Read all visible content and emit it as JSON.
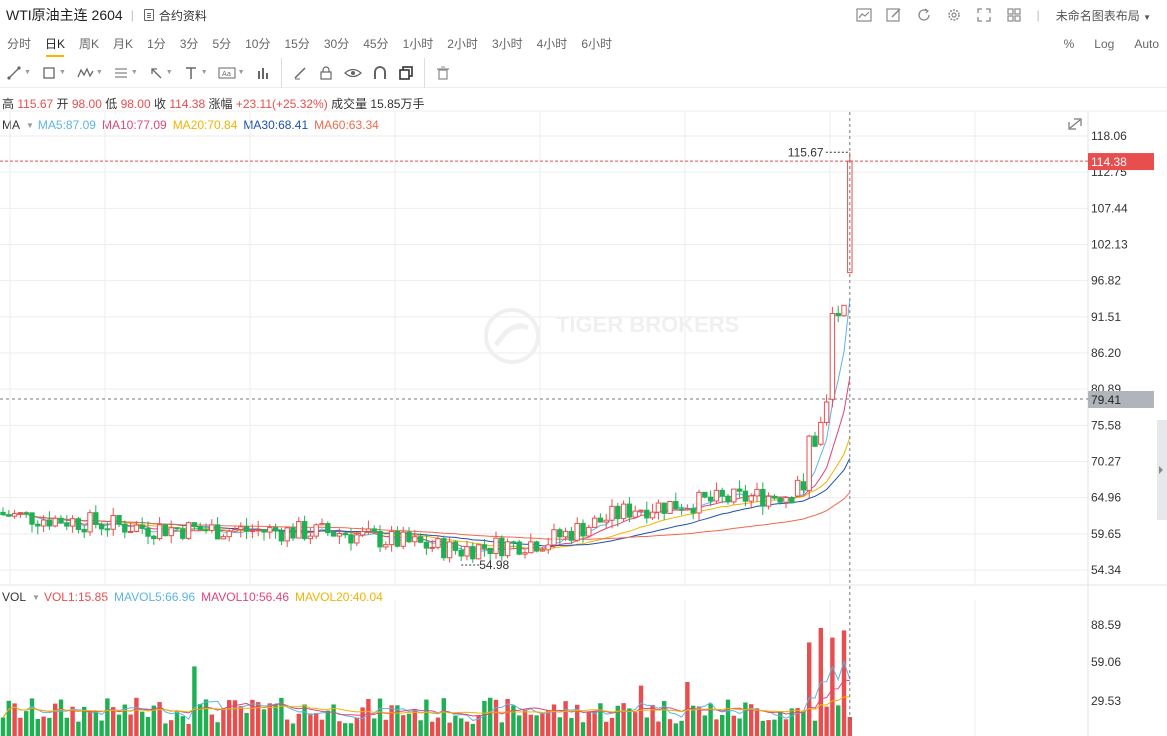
{
  "header": {
    "symbol": "WTI原油主连 2604",
    "contract_link": "合约资料",
    "layout_name": "未命名图表布局",
    "icons": [
      "chart-line-icon",
      "pen-edit-icon",
      "refresh-icon",
      "gear-icon",
      "fullscreen-icon",
      "grid-layout-icon"
    ]
  },
  "periods": [
    "分时",
    "日K",
    "周K",
    "月K",
    "1分",
    "3分",
    "5分",
    "10分",
    "15分",
    "30分",
    "45分",
    "1小时",
    "2小时",
    "3小时",
    "4小时",
    "6小时"
  ],
  "active_period": "日K",
  "scale_options": [
    "%",
    "Log",
    "Auto"
  ],
  "drawing_tools": [
    "line-tool-icon",
    "rectangle-tool-icon",
    "wave-tool-icon",
    "fib-tool-icon",
    "arrow-tool-icon",
    "text-tool-icon",
    "label-tool-icon",
    "measure-tool-icon",
    "brush-icon",
    "lock-icon",
    "eye-icon",
    "magnet-icon",
    "copy-icon",
    "trash-icon"
  ],
  "ohlc": {
    "high_label": "高",
    "high": "115.67",
    "open_label": "开",
    "open": "98.00",
    "low_label": "低",
    "low": "98.00",
    "close_label": "收",
    "close": "114.38",
    "change_label": "涨幅",
    "change": "+23.11(+25.32%)",
    "volume_label": "成交量",
    "volume": "15.85万手"
  },
  "ma_legend": {
    "title": "MA",
    "ma5": "MA5:87.09",
    "ma10": "MA10:77.09",
    "ma20": "MA20:70.84",
    "ma30": "MA30:68.41",
    "ma60": "MA60:63.34"
  },
  "vol_legend": {
    "title": "VOL",
    "vol1": "VOL1:15.85",
    "mavol5": "MAVOL5:66.96",
    "mavol10": "MAVOL10:56.46",
    "mavol20": "MAVOL20:40.04"
  },
  "colors": {
    "up": "#e94e4e",
    "down": "#20b054",
    "ma5": "#5bb4e6",
    "ma10": "#e0457b",
    "ma20": "#f0b400",
    "ma30": "#1f4fb5",
    "ma60": "#ef6a4e",
    "grid": "#eeeeee",
    "axis_text": "#333333"
  },
  "watermark": "TIGER BROKERS",
  "chart_data": {
    "type": "candlestick",
    "price_axis_ticks": [
      "118.06",
      "112.75",
      "107.44",
      "102.13",
      "96.82",
      "91.51",
      "86.20",
      "80.89",
      "75.58",
      "70.27",
      "64.96",
      "59.65",
      "54.34"
    ],
    "volume_axis_ticks": [
      "88.59",
      "59.06",
      "29.53"
    ],
    "last_price": "114.38",
    "crosshair_price": "79.41",
    "high_marker": "115.67",
    "low_marker": "54.98",
    "last_candle": {
      "open": 98.0,
      "high": 115.67,
      "low": 98.0,
      "close": 114.38,
      "volume": 15.85
    }
  }
}
